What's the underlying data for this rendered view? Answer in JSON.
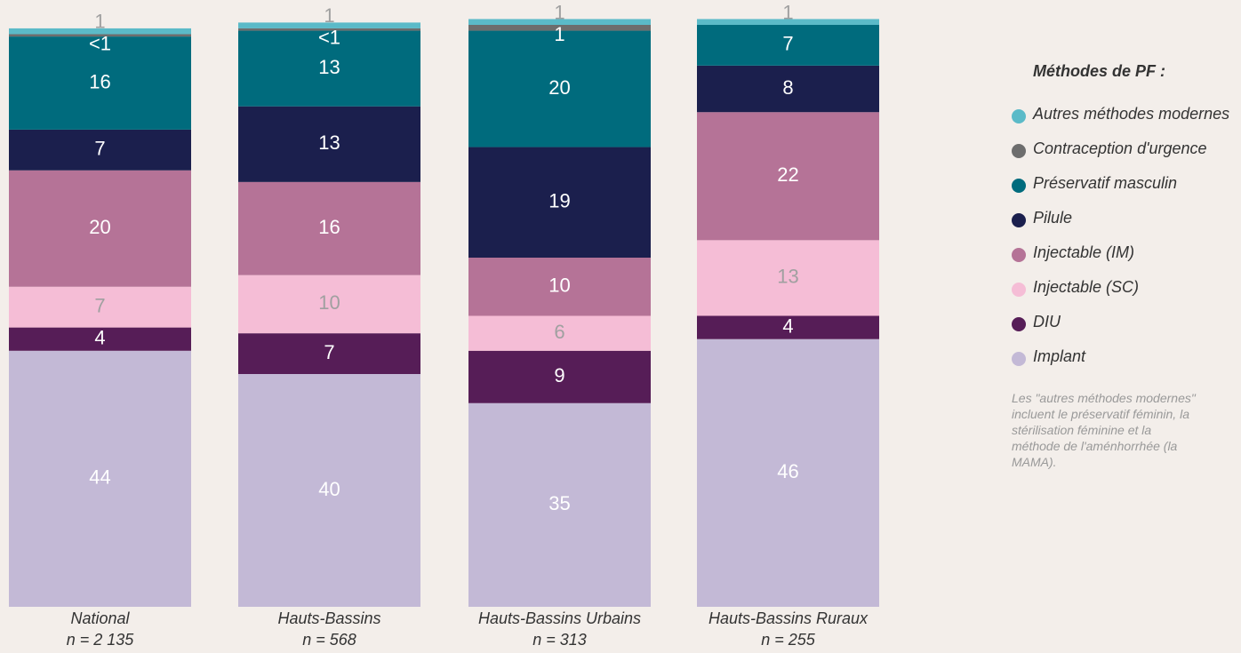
{
  "chart_data": {
    "type": "stacked_bar",
    "categories": [
      "National",
      "Hauts-Bassins",
      "Hauts-Bassins Urbains",
      "Hauts-Bassins Ruraux"
    ],
    "sample_sizes": [
      "n = 2 135",
      "n = 568",
      "n = 313",
      "n = 255"
    ],
    "legend_title": "Méthodes de PF :",
    "note": "Les \"autres méthodes modernes\" incluent le préservatif féminin, la stérilisation féminine et la méthode de l'aménhorrhée (la MAMA).",
    "legend": "right",
    "series": [
      {
        "name": "Implant",
        "color": "#c3b9d6",
        "values": [
          44,
          40,
          35,
          46
        ]
      },
      {
        "name": "DIU",
        "color": "#561d57",
        "values": [
          4,
          7,
          9,
          4
        ]
      },
      {
        "name": "Injectable (SC)",
        "color": "#f5bdd6",
        "values": [
          7,
          10,
          6,
          13
        ]
      },
      {
        "name": "Injectable (IM)",
        "color": "#b57397",
        "values": [
          20,
          16,
          10,
          22
        ]
      },
      {
        "name": "Pilule",
        "color": "#1b1f4d",
        "values": [
          7,
          13,
          19,
          8
        ]
      },
      {
        "name": "Préservatif masculin",
        "color": "#006b7d",
        "values": [
          16,
          13,
          20,
          7
        ]
      },
      {
        "name": "Contraception d'urgence",
        "color": "#6d6d6d",
        "values": [
          0.4,
          0.4,
          1,
          null
        ],
        "value_labels": [
          "<1",
          "<1",
          "1",
          null
        ]
      },
      {
        "name": "Autres méthodes modernes",
        "color": "#5bbac8",
        "values": [
          1,
          1,
          1,
          1
        ]
      }
    ]
  }
}
